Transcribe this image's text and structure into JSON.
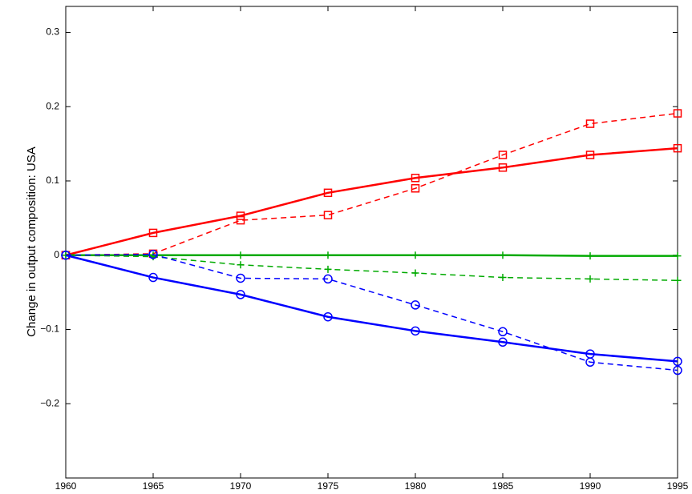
{
  "chart_data": {
    "type": "line",
    "ylabel": "Change in output composition: USA",
    "x": [
      1960,
      1965,
      1970,
      1975,
      1980,
      1985,
      1990,
      1995
    ],
    "xlim": [
      1960,
      1995
    ],
    "xticks": [
      1960,
      1965,
      1970,
      1975,
      1980,
      1985,
      1990,
      1995
    ],
    "ylim": [
      -0.3,
      0.335
    ],
    "yticks": [
      {
        "value": -0.2,
        "label": "−0.2"
      },
      {
        "value": -0.1,
        "label": "−0.1"
      },
      0,
      0.1,
      0.2,
      0.3
    ],
    "grid": false,
    "series": [
      {
        "color": "#ff0000",
        "linestyle": "solid",
        "marker": "square",
        "values": [
          0,
          0.03,
          0.053,
          0.084,
          0.104,
          0.118,
          0.135,
          0.144
        ]
      },
      {
        "color": "#ff0000",
        "linestyle": "dashed",
        "marker": "square",
        "values": [
          0,
          0.002,
          0.047,
          0.054,
          0.09,
          0.135,
          0.177,
          0.191
        ]
      },
      {
        "color": "#00aa00",
        "linestyle": "solid",
        "marker": "plus",
        "values": [
          0,
          0,
          0,
          0,
          0,
          0,
          -0.001,
          -0.001
        ]
      },
      {
        "color": "#00aa00",
        "linestyle": "dashed",
        "marker": "plus",
        "values": [
          0,
          -0.002,
          -0.013,
          -0.019,
          -0.024,
          -0.03,
          -0.032,
          -0.034
        ]
      },
      {
        "color": "#0000ff",
        "linestyle": "solid",
        "marker": "circle",
        "values": [
          0,
          -0.03,
          -0.053,
          -0.083,
          -0.102,
          -0.117,
          -0.133,
          -0.143
        ]
      },
      {
        "color": "#0000ff",
        "linestyle": "dashed",
        "marker": "circle",
        "values": [
          0,
          0.001,
          -0.031,
          -0.032,
          -0.067,
          -0.103,
          -0.144,
          -0.155
        ]
      }
    ]
  }
}
